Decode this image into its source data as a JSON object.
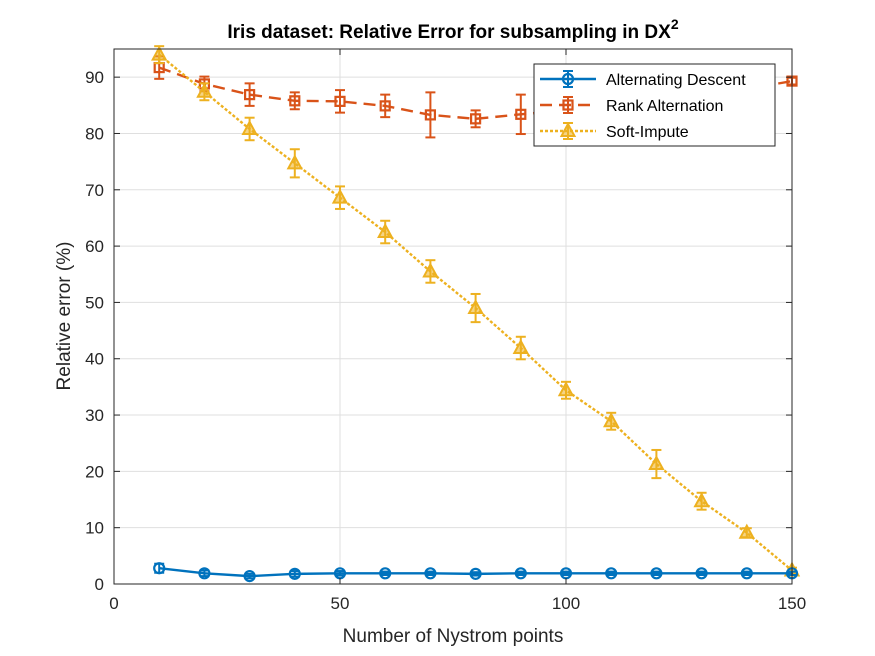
{
  "chart_data": {
    "type": "line",
    "title": "Iris dataset: Relative Error for subsampling in DX",
    "title_superscript": "2",
    "xlabel": "Number of Nystrom points",
    "ylabel": "Relative error (%)",
    "xlim": [
      0,
      150
    ],
    "ylim": [
      0,
      95
    ],
    "xticks": [
      0,
      50,
      100,
      150
    ],
    "yticks": [
      0,
      10,
      20,
      30,
      40,
      50,
      60,
      70,
      80,
      90
    ],
    "grid": true,
    "legend_position": "top-right",
    "x": [
      10,
      20,
      30,
      40,
      50,
      60,
      70,
      80,
      90,
      100,
      110,
      120,
      130,
      140,
      150
    ],
    "series": [
      {
        "name": "Alternating Descent",
        "color": "#0072BD",
        "line_style": "solid",
        "marker": "circle",
        "values": [
          2.8,
          1.9,
          1.4,
          1.8,
          1.9,
          1.9,
          1.9,
          1.8,
          1.9,
          1.9,
          1.9,
          1.9,
          1.9,
          1.9,
          1.9
        ],
        "errors": [
          0.8,
          0.5,
          0.4,
          0.5,
          0.4,
          0.3,
          0.3,
          0.3,
          0.3,
          0.3,
          0.3,
          0.3,
          0.3,
          0.3,
          0.3
        ]
      },
      {
        "name": "Rank Alternation",
        "color": "#D95319",
        "line_style": "dashed",
        "marker": "square",
        "values": [
          91.7,
          88.8,
          86.9,
          85.8,
          85.7,
          84.9,
          83.3,
          82.6,
          83.4,
          84.1,
          85.0,
          85.9,
          86.8,
          87.9,
          89.3
        ],
        "errors": [
          2.0,
          1.3,
          2.0,
          1.5,
          2.0,
          2.0,
          4.0,
          1.5,
          3.5,
          2.5,
          2.0,
          2.0,
          2.0,
          1.5,
          0.6
        ]
      },
      {
        "name": "Soft-Impute",
        "color": "#EDB120",
        "line_style": "dotted",
        "marker": "triangle",
        "values": [
          94.0,
          87.4,
          80.8,
          74.7,
          68.6,
          62.5,
          55.5,
          49.0,
          41.9,
          34.4,
          28.9,
          21.3,
          14.7,
          9.1,
          2.4
        ],
        "errors": [
          1.5,
          1.5,
          2.0,
          2.5,
          2.0,
          2.0,
          2.0,
          2.5,
          2.0,
          1.5,
          1.5,
          2.5,
          1.5,
          0.8,
          0.5
        ]
      }
    ]
  }
}
